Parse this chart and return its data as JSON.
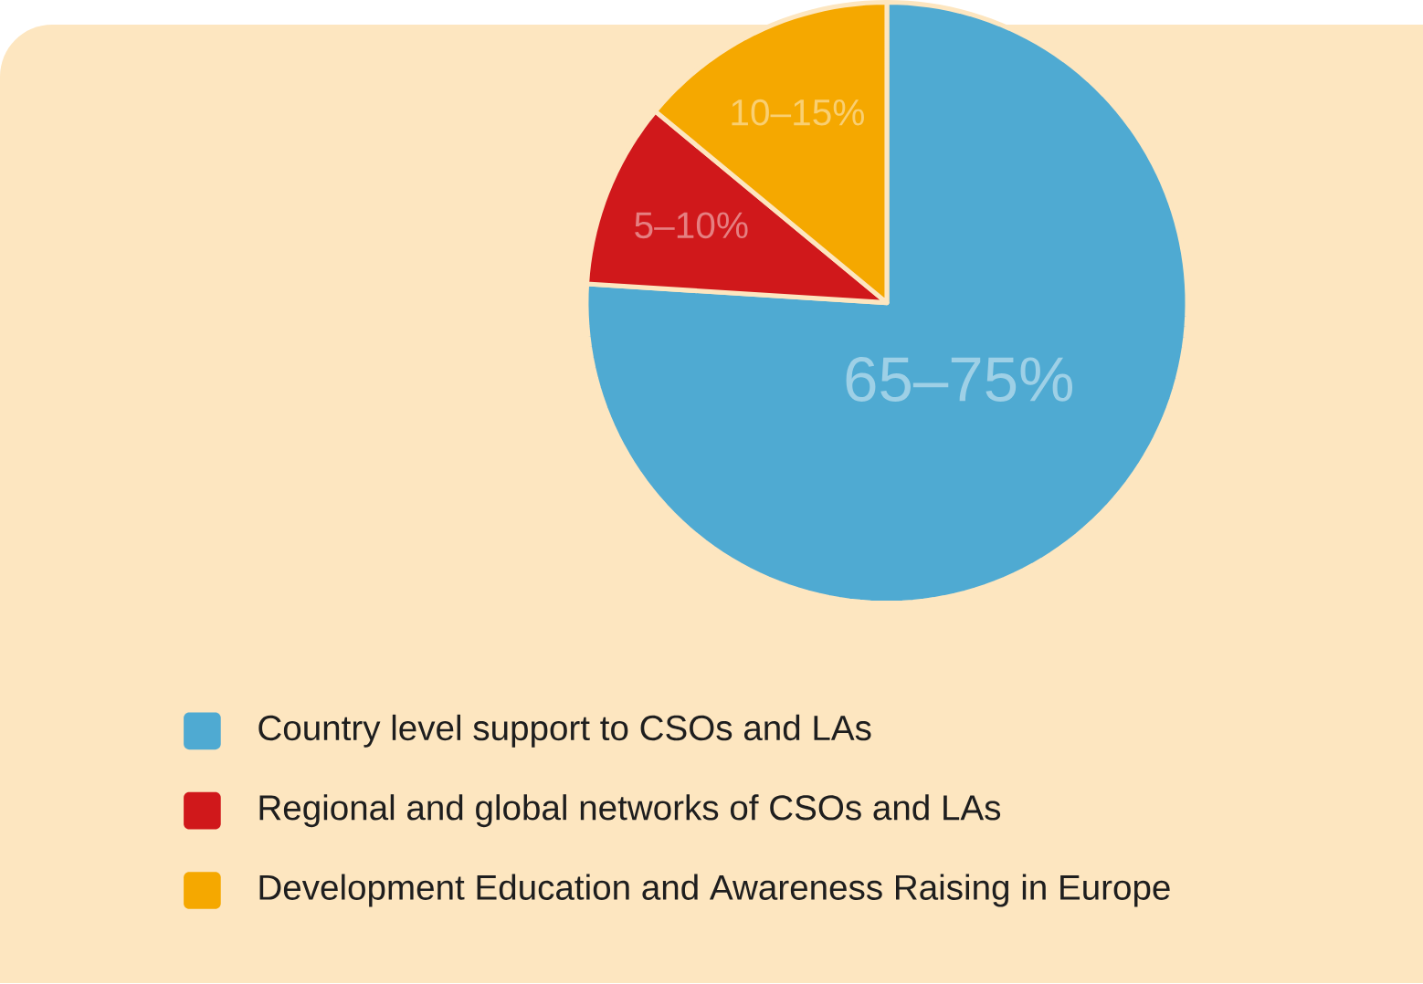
{
  "chart_data": {
    "type": "pie",
    "categories": [
      "Country level support to CSOs and LAs",
      "Regional and global networks of CSOs and LAs",
      "Development Education and Awareness Raising in Europe"
    ],
    "values": [
      76,
      10,
      14
    ],
    "annotations": [
      "65–75%",
      "5–10%",
      "10–15%"
    ],
    "colors": [
      "#4faad2",
      "#d0181b",
      "#f5a800"
    ],
    "legend": "bottom"
  }
}
